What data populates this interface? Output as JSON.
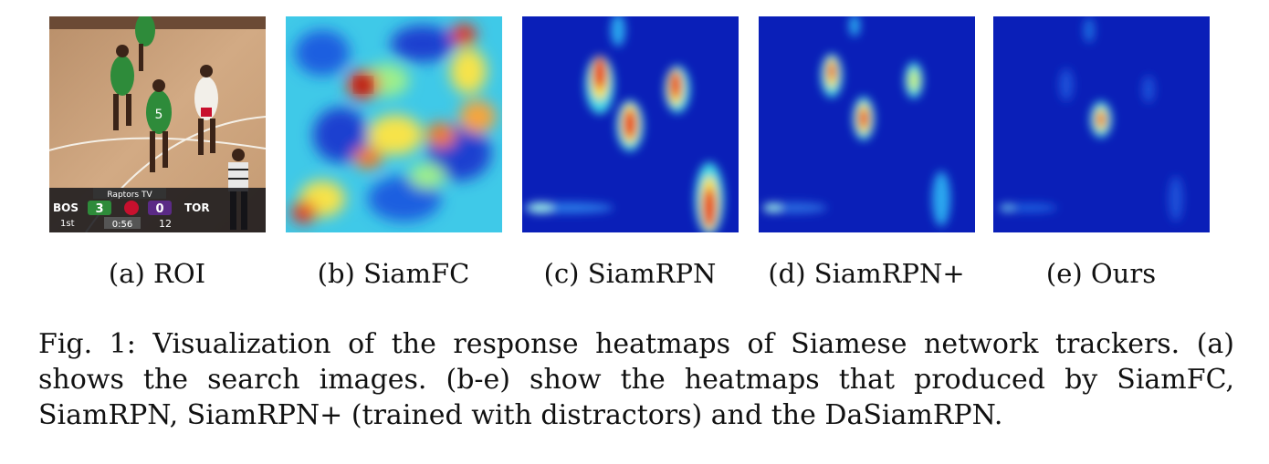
{
  "figure": {
    "panels": [
      {
        "id": "a",
        "label": "(a) ROI"
      },
      {
        "id": "b",
        "label": "(b) SiamFC"
      },
      {
        "id": "c",
        "label": "(c) SiamRPN"
      },
      {
        "id": "d",
        "label": "(d) SiamRPN+"
      },
      {
        "id": "e",
        "label": "(e) Ours"
      }
    ],
    "scoreboard": {
      "home": "BOS",
      "home_score": "3",
      "away_score": "0",
      "away": "TOR",
      "quarter": "1st",
      "clock": "0:56",
      "shot_clock": "12",
      "network": "Raptors TV"
    },
    "jersey_number": "5",
    "caption": {
      "line1": "Fig. 1: Visualization of the response heatmaps of Siamese network trackers. (a)",
      "line2": "shows the search images. (b-e) show the heatmaps that produced by SiamFC,",
      "line3": "SiamRPN, SiamRPN+ (trained with distractors) and the DaSiamRPN."
    }
  },
  "colors": {
    "heat_bg": "#0a1fb8",
    "heat_peak": "#7a0000",
    "court": "#c9a07a",
    "celtics_green": "#2e8b3a"
  }
}
